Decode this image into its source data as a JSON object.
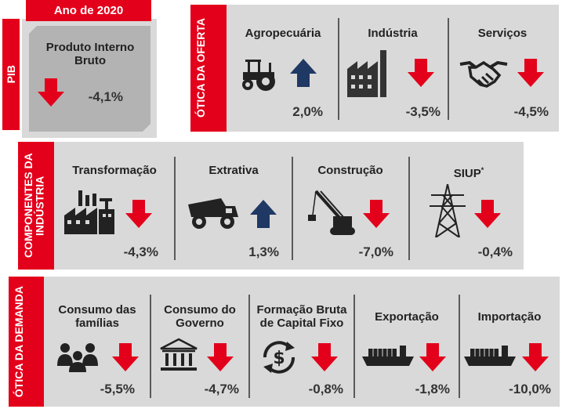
{
  "year_label": "Ano de 2020",
  "colors": {
    "red": "#e3001b",
    "panel": "#d9d9d9",
    "pib_box": "#b3b3b3",
    "up_arrow": "#1f3864"
  },
  "pib": {
    "side_label": "PIB",
    "title": "Produto Interno Bruto",
    "value": "-4,1%",
    "direction": "down"
  },
  "oferta": {
    "side_label": "ÓTICA DA OFERTA",
    "items": [
      {
        "title": "Agropecuária",
        "value": "2,0%",
        "direction": "up",
        "icon": "tractor-icon"
      },
      {
        "title": "Indústria",
        "value": "-3,5%",
        "direction": "down",
        "icon": "factory-icon"
      },
      {
        "title": "Serviços",
        "value": "-4,5%",
        "direction": "down",
        "icon": "handshake-icon"
      }
    ]
  },
  "industria": {
    "side_label": "COMPONENTES DA INDÚSTRIA",
    "items": [
      {
        "title": "Transformação",
        "value": "-4,3%",
        "direction": "down",
        "icon": "factory-plant-icon"
      },
      {
        "title": "Extrativa",
        "value": "1,3%",
        "direction": "up",
        "icon": "mining-truck-icon"
      },
      {
        "title": "Construção",
        "value": "-7,0%",
        "direction": "down",
        "icon": "crane-icon"
      },
      {
        "title": "SIUP",
        "title_sup": "*",
        "value": "-0,4%",
        "direction": "down",
        "icon": "power-tower-icon"
      }
    ]
  },
  "demanda": {
    "side_label": "ÓTICA DA DEMANDA",
    "items": [
      {
        "title": "Consumo das famílias",
        "value": "-5,5%",
        "direction": "down",
        "icon": "family-icon"
      },
      {
        "title": "Consumo do Governo",
        "value": "-4,7%",
        "direction": "down",
        "icon": "government-building-icon"
      },
      {
        "title": "Formação Bruta de Capital Fixo",
        "value": "-0,8%",
        "direction": "down",
        "icon": "money-cycle-icon"
      },
      {
        "title": "Exportação",
        "value": "-1,8%",
        "direction": "down",
        "icon": "cargo-ship-icon"
      },
      {
        "title": "Importação",
        "value": "-10,0%",
        "direction": "down",
        "icon": "cargo-ship-icon"
      }
    ]
  }
}
